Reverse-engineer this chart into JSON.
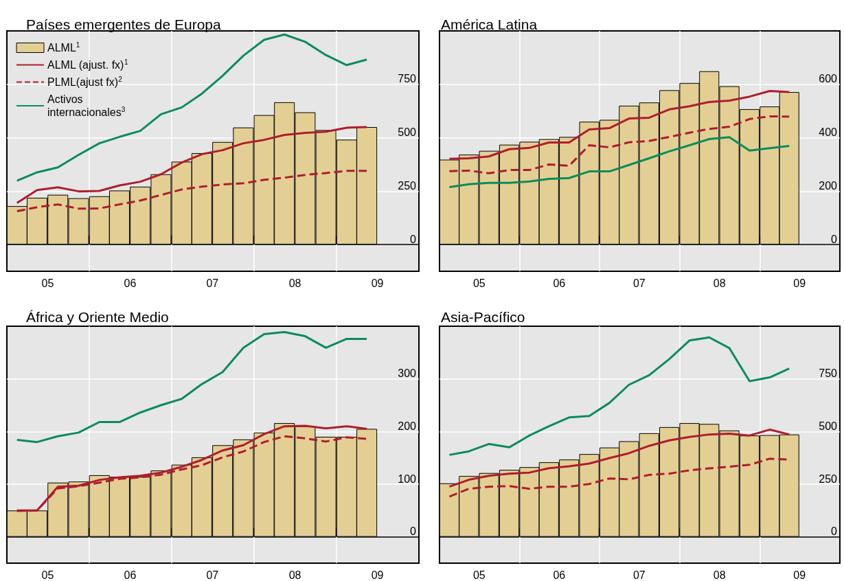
{
  "chart_data": [
    {
      "type": "bar",
      "title": "Países emergentes de Europa",
      "x": [
        "2005-02-15",
        "2005-05-15",
        "2005-08-15",
        "2005-11-15",
        "2006-02-15",
        "2006-05-15",
        "2006-08-15",
        "2006-11-15",
        "2007-02-15",
        "2007-05-15",
        "2007-08-15",
        "2007-11-15",
        "2008-02-15",
        "2008-05-15",
        "2008-08-15",
        "2008-11-15",
        "2009-02-15",
        "2009-05-15"
      ],
      "xlim": [
        "2005-01-01",
        "2010-01-01"
      ],
      "xticks": [
        {
          "value": "2005-07-01",
          "label": "05"
        },
        {
          "value": "2006-01-01",
          "label": null
        },
        {
          "value": "2006-07-01",
          "label": "06"
        },
        {
          "value": "2007-01-01",
          "label": null
        },
        {
          "value": "2007-07-01",
          "label": "07"
        },
        {
          "value": "2008-01-01",
          "label": null
        },
        {
          "value": "2008-07-01",
          "label": "08"
        },
        {
          "value": "2009-01-01",
          "label": null
        },
        {
          "value": "2009-07-01",
          "label": "09"
        }
      ],
      "ylim": [
        -125,
        1000
      ],
      "yticks": [
        0,
        250,
        500,
        750
      ],
      "grid": true,
      "legend": "top left",
      "marker": "none",
      "series": [
        {
          "name": "ALML$^{1}$",
          "color": "#e3cf94",
          "values": [
            180,
            219,
            233,
            217,
            226,
            253,
            271,
            329,
            388,
            428,
            480,
            548,
            606,
            666,
            619,
            536,
            491,
            550
          ]
        },
        {
          "name": "ALML (ajust. fx)$^{1}$",
          "type": "line",
          "color": "#b01c2e",
          "values": [
            195,
            255,
            268,
            249,
            251,
            277,
            294,
            329,
            384,
            423,
            442,
            474,
            490,
            513,
            523,
            528,
            547,
            550
          ]
        },
        {
          "name": "PLML(ajust fx)$^{2}$",
          "type": "line",
          "line_style": "dashed",
          "color": "#b01c2e",
          "values": [
            156,
            175,
            188,
            168,
            169,
            188,
            206,
            232,
            258,
            271,
            281,
            287,
            303,
            313,
            326,
            335,
            345,
            345
          ]
        },
        {
          "name": "Activos internacionales$^{3}$",
          "type": "line",
          "color": "#0a8c5a",
          "values": [
            299,
            338,
            361,
            420,
            474,
            504,
            532,
            610,
            642,
            706,
            790,
            884,
            958,
            983,
            949,
            887,
            840,
            866
          ]
        }
      ]
    },
    {
      "type": "bar",
      "title": "América Latina",
      "x": [
        "2005-02-15",
        "2005-05-15",
        "2005-08-15",
        "2005-11-15",
        "2006-02-15",
        "2006-05-15",
        "2006-08-15",
        "2006-11-15",
        "2007-02-15",
        "2007-05-15",
        "2007-08-15",
        "2007-11-15",
        "2008-02-15",
        "2008-05-15",
        "2008-08-15",
        "2008-11-15",
        "2009-02-15",
        "2009-05-15"
      ],
      "xlim": [
        "2005-01-01",
        "2010-01-01"
      ],
      "xticks": [
        {
          "value": "2005-07-01",
          "label": "05"
        },
        {
          "value": "2006-01-01",
          "label": null
        },
        {
          "value": "2006-07-01",
          "label": "06"
        },
        {
          "value": "2007-01-01",
          "label": null
        },
        {
          "value": "2007-07-01",
          "label": "07"
        },
        {
          "value": "2008-01-01",
          "label": null
        },
        {
          "value": "2008-07-01",
          "label": "08"
        },
        {
          "value": "2009-01-01",
          "label": null
        },
        {
          "value": "2009-07-01",
          "label": "09"
        }
      ],
      "ylim": [
        -100,
        800
      ],
      "yticks": [
        0,
        200,
        400,
        600
      ],
      "grid": true,
      "marker": "none",
      "series": [
        {
          "color": "#e3cf94",
          "values": [
            318,
            337,
            351,
            374,
            385,
            395,
            403,
            460,
            467,
            520,
            532,
            578,
            605,
            649,
            593,
            507,
            517,
            571
          ]
        },
        {
          "type": "line",
          "color": "#b01c2e",
          "values": [
            321,
            323,
            330,
            357,
            362,
            382,
            382,
            431,
            436,
            472,
            475,
            506,
            518,
            534,
            539,
            554,
            575,
            571
          ]
        },
        {
          "type": "line",
          "line_style": "dashed",
          "color": "#b01c2e",
          "values": [
            275,
            277,
            267,
            279,
            279,
            300,
            295,
            372,
            364,
            383,
            388,
            403,
            419,
            433,
            441,
            470,
            480,
            479
          ]
        },
        {
          "type": "line",
          "color": "#0a8c5a",
          "values": [
            215,
            226,
            231,
            231,
            236,
            246,
            249,
            274,
            274,
            298,
            323,
            349,
            372,
            395,
            402,
            352,
            361,
            369
          ]
        }
      ]
    },
    {
      "type": "bar",
      "title": "África y Oriente Medio",
      "x": [
        "2005-02-15",
        "2005-05-15",
        "2005-08-15",
        "2005-11-15",
        "2006-02-15",
        "2006-05-15",
        "2006-08-15",
        "2006-11-15",
        "2007-02-15",
        "2007-05-15",
        "2007-08-15",
        "2007-11-15",
        "2008-02-15",
        "2008-05-15",
        "2008-08-15",
        "2008-11-15",
        "2009-02-15",
        "2009-05-15"
      ],
      "xlim": [
        "2005-01-01",
        "2010-01-01"
      ],
      "xticks": [
        {
          "value": "2005-07-01",
          "label": "05"
        },
        {
          "value": "2006-01-01",
          "label": null
        },
        {
          "value": "2006-07-01",
          "label": "06"
        },
        {
          "value": "2007-01-01",
          "label": null
        },
        {
          "value": "2007-07-01",
          "label": "07"
        },
        {
          "value": "2008-01-01",
          "label": null
        },
        {
          "value": "2008-07-01",
          "label": "08"
        },
        {
          "value": "2009-01-01",
          "label": null
        },
        {
          "value": "2009-07-01",
          "label": "09"
        }
      ],
      "ylim": [
        -50,
        400
      ],
      "yticks": [
        0,
        100,
        200,
        300
      ],
      "grid": true,
      "marker": "none",
      "series": [
        {
          "color": "#e3cf94",
          "values": [
            50,
            50,
            103,
            105,
            117,
            114,
            114,
            126,
            137,
            151,
            174,
            185,
            198,
            216,
            210,
            190,
            190,
            205
          ]
        },
        {
          "type": "line",
          "color": "#b01c2e",
          "values": [
            50,
            50,
            95,
            97,
            108,
            113,
            116,
            122,
            133,
            146,
            164,
            174,
            195,
            210,
            211,
            206,
            210,
            205
          ]
        },
        {
          "type": "line",
          "line_style": "dashed",
          "color": "#b01c2e",
          "values": [
            49,
            50,
            92,
            96,
            103,
            110,
            113,
            118,
            128,
            136,
            151,
            162,
            180,
            191,
            187,
            181,
            189,
            186
          ]
        },
        {
          "type": "line",
          "color": "#0a8c5a",
          "values": [
            184,
            180,
            191,
            198,
            218,
            218,
            236,
            250,
            262,
            290,
            313,
            359,
            385,
            389,
            381,
            359,
            376,
            376
          ]
        }
      ]
    },
    {
      "type": "bar",
      "title": "Asia-Pacífico",
      "x": [
        "2005-02-15",
        "2005-05-15",
        "2005-08-15",
        "2005-11-15",
        "2006-02-15",
        "2006-05-15",
        "2006-08-15",
        "2006-11-15",
        "2007-02-15",
        "2007-05-15",
        "2007-08-15",
        "2007-11-15",
        "2008-02-15",
        "2008-05-15",
        "2008-08-15",
        "2008-11-15",
        "2009-02-15",
        "2009-05-15"
      ],
      "xlim": [
        "2005-01-01",
        "2010-01-01"
      ],
      "xticks": [
        {
          "value": "2005-07-01",
          "label": "05"
        },
        {
          "value": "2006-01-01",
          "label": null
        },
        {
          "value": "2006-07-01",
          "label": "06"
        },
        {
          "value": "2007-01-01",
          "label": null
        },
        {
          "value": "2007-07-01",
          "label": "07"
        },
        {
          "value": "2008-01-01",
          "label": null
        },
        {
          "value": "2008-07-01",
          "label": "08"
        },
        {
          "value": "2009-01-01",
          "label": null
        },
        {
          "value": "2009-07-01",
          "label": "09"
        }
      ],
      "ylim": [
        -125,
        1000
      ],
      "yticks": [
        0,
        250,
        500,
        750
      ],
      "grid": true,
      "marker": "none",
      "series": [
        {
          "color": "#e3cf94",
          "values": [
            254,
            289,
            303,
            318,
            331,
            354,
            367,
            393,
            424,
            454,
            492,
            521,
            540,
            536,
            505,
            481,
            483,
            486
          ]
        },
        {
          "type": "line",
          "color": "#b01c2e",
          "values": [
            238,
            271,
            290,
            300,
            305,
            326,
            335,
            348,
            374,
            397,
            432,
            458,
            474,
            486,
            490,
            481,
            509,
            486
          ]
        },
        {
          "type": "line",
          "line_style": "dashed",
          "color": "#b01c2e",
          "values": [
            191,
            228,
            238,
            241,
            228,
            238,
            238,
            251,
            277,
            273,
            294,
            300,
            316,
            325,
            333,
            342,
            371,
            367
          ]
        },
        {
          "type": "line",
          "color": "#0a8c5a",
          "values": [
            389,
            406,
            441,
            425,
            481,
            525,
            567,
            574,
            636,
            722,
            767,
            844,
            932,
            947,
            896,
            739,
            757,
            799
          ]
        }
      ]
    }
  ]
}
